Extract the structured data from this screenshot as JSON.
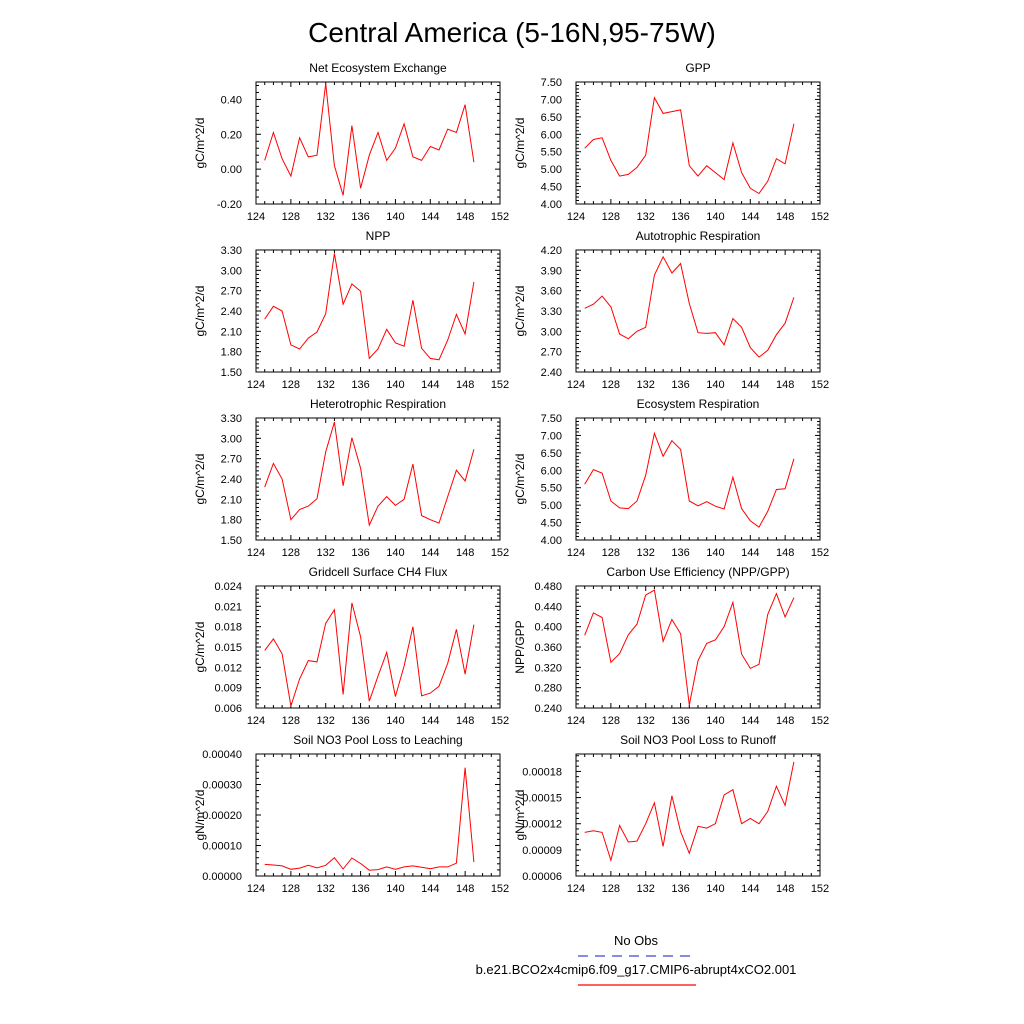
{
  "figure": {
    "title": "Central America (5-16N,95-75W)",
    "line_color": "#ff0000",
    "obs_line_color": "#4444cc"
  },
  "legend": {
    "obs_label": "No Obs",
    "model_label": "b.e21.BCO2x4cmip6.f09_g17.CMIP6-abrupt4xCO2.001"
  },
  "chart_data": [
    {
      "type": "line",
      "title": "Net Ecosystem Exchange",
      "ylabel": "gC/m^2/d",
      "xlim": [
        124,
        152
      ],
      "ylim": [
        -0.2,
        0.5
      ],
      "xticks": [
        "124",
        "128",
        "132",
        "136",
        "140",
        "144",
        "148",
        "152"
      ],
      "yticks": [
        "-0.20",
        "0.00",
        "0.20",
        "0.40"
      ],
      "x": [
        125,
        126,
        127,
        128,
        129,
        130,
        131,
        132,
        133,
        134,
        135,
        136,
        137,
        138,
        139,
        140,
        141,
        142,
        143,
        144,
        145,
        146,
        147,
        148,
        149
      ],
      "series": [
        {
          "name": "b.e21.BCO2x4cmip6.f09_g17.CMIP6-abrupt4xCO2.001",
          "values": [
            0.05,
            0.21,
            0.06,
            -0.04,
            0.18,
            0.07,
            0.08,
            0.49,
            0.02,
            -0.15,
            0.25,
            -0.11,
            0.08,
            0.21,
            0.05,
            0.12,
            0.26,
            0.07,
            0.05,
            0.13,
            0.11,
            0.23,
            0.21,
            0.37,
            0.04
          ]
        }
      ]
    },
    {
      "type": "line",
      "title": "GPP",
      "ylabel": "gC/m^2/d",
      "xlim": [
        124,
        152
      ],
      "ylim": [
        4.0,
        7.5
      ],
      "xticks": [
        "124",
        "128",
        "132",
        "136",
        "140",
        "144",
        "148",
        "152"
      ],
      "yticks": [
        "4.00",
        "4.50",
        "5.00",
        "5.50",
        "6.00",
        "6.50",
        "7.00",
        "7.50"
      ],
      "x": [
        125,
        126,
        127,
        128,
        129,
        130,
        131,
        132,
        133,
        134,
        135,
        136,
        137,
        138,
        139,
        140,
        141,
        142,
        143,
        144,
        145,
        146,
        147,
        148,
        149
      ],
      "series": [
        {
          "name": "b.e21.BCO2x4cmip6.f09_g17.CMIP6-abrupt4xCO2.001",
          "values": [
            5.6,
            5.85,
            5.9,
            5.25,
            4.8,
            4.85,
            5.05,
            5.4,
            7.05,
            6.6,
            6.65,
            6.7,
            5.1,
            4.8,
            5.1,
            4.9,
            4.7,
            5.75,
            4.9,
            4.45,
            4.3,
            4.65,
            5.3,
            5.15,
            6.3
          ]
        }
      ]
    },
    {
      "type": "line",
      "title": "NPP",
      "ylabel": "gC/m^2/d",
      "xlim": [
        124,
        152
      ],
      "ylim": [
        1.5,
        3.3
      ],
      "xticks": [
        "124",
        "128",
        "132",
        "136",
        "140",
        "144",
        "148",
        "152"
      ],
      "yticks": [
        "1.50",
        "1.80",
        "2.10",
        "2.40",
        "2.70",
        "3.00",
        "3.30"
      ],
      "x": [
        125,
        126,
        127,
        128,
        129,
        130,
        131,
        132,
        133,
        134,
        135,
        136,
        137,
        138,
        139,
        140,
        141,
        142,
        143,
        144,
        145,
        146,
        147,
        148,
        149
      ],
      "series": [
        {
          "name": "b.e21.BCO2x4cmip6.f09_g17.CMIP6-abrupt4xCO2.001",
          "values": [
            2.28,
            2.47,
            2.4,
            1.9,
            1.84,
            2.0,
            2.09,
            2.36,
            3.25,
            2.5,
            2.8,
            2.69,
            1.7,
            1.84,
            2.13,
            1.93,
            1.88,
            2.56,
            1.85,
            1.7,
            1.68,
            1.97,
            2.35,
            2.06,
            2.83
          ]
        }
      ]
    },
    {
      "type": "line",
      "title": "Autotrophic Respiration",
      "ylabel": "gC/m^2/d",
      "xlim": [
        124,
        152
      ],
      "ylim": [
        2.4,
        4.2
      ],
      "xticks": [
        "124",
        "128",
        "132",
        "136",
        "140",
        "144",
        "148",
        "152"
      ],
      "yticks": [
        "2.40",
        "2.70",
        "3.00",
        "3.30",
        "3.60",
        "3.90",
        "4.20"
      ],
      "x": [
        125,
        126,
        127,
        128,
        129,
        130,
        131,
        132,
        133,
        134,
        135,
        136,
        137,
        138,
        139,
        140,
        141,
        142,
        143,
        144,
        145,
        146,
        147,
        148,
        149
      ],
      "series": [
        {
          "name": "b.e21.BCO2x4cmip6.f09_g17.CMIP6-abrupt4xCO2.001",
          "values": [
            3.34,
            3.4,
            3.52,
            3.36,
            2.96,
            2.89,
            3.0,
            3.06,
            3.83,
            4.1,
            3.86,
            4.0,
            3.41,
            2.98,
            2.97,
            2.98,
            2.8,
            3.19,
            3.06,
            2.76,
            2.62,
            2.72,
            2.95,
            3.12,
            3.5
          ]
        }
      ]
    },
    {
      "type": "line",
      "title": "Heterotrophic Respiration",
      "ylabel": "gC/m^2/d",
      "xlim": [
        124,
        152
      ],
      "ylim": [
        1.5,
        3.3
      ],
      "xticks": [
        "124",
        "128",
        "132",
        "136",
        "140",
        "144",
        "148",
        "152"
      ],
      "yticks": [
        "1.50",
        "1.80",
        "2.10",
        "2.40",
        "2.70",
        "3.00",
        "3.30"
      ],
      "x": [
        125,
        126,
        127,
        128,
        129,
        130,
        131,
        132,
        133,
        134,
        135,
        136,
        137,
        138,
        139,
        140,
        141,
        142,
        143,
        144,
        145,
        146,
        147,
        148,
        149
      ],
      "series": [
        {
          "name": "b.e21.BCO2x4cmip6.f09_g17.CMIP6-abrupt4xCO2.001",
          "values": [
            2.28,
            2.63,
            2.4,
            1.8,
            1.95,
            2.0,
            2.11,
            2.8,
            3.24,
            2.3,
            3.01,
            2.56,
            1.72,
            2.0,
            2.14,
            2.01,
            2.1,
            2.62,
            1.86,
            1.8,
            1.75,
            2.14,
            2.53,
            2.37,
            2.84
          ]
        }
      ]
    },
    {
      "type": "line",
      "title": "Ecosystem Respiration",
      "ylabel": "gC/m^2/d",
      "xlim": [
        124,
        152
      ],
      "ylim": [
        4.0,
        7.5
      ],
      "xticks": [
        "124",
        "128",
        "132",
        "136",
        "140",
        "144",
        "148",
        "152"
      ],
      "yticks": [
        "4.00",
        "4.50",
        "5.00",
        "5.50",
        "6.00",
        "6.50",
        "7.00",
        "7.50"
      ],
      "x": [
        125,
        126,
        127,
        128,
        129,
        130,
        131,
        132,
        133,
        134,
        135,
        136,
        137,
        138,
        139,
        140,
        141,
        142,
        143,
        144,
        145,
        146,
        147,
        148,
        149
      ],
      "series": [
        {
          "name": "b.e21.BCO2x4cmip6.f09_g17.CMIP6-abrupt4xCO2.001",
          "values": [
            5.6,
            6.02,
            5.92,
            5.12,
            4.92,
            4.9,
            5.12,
            5.86,
            7.06,
            6.4,
            6.85,
            6.6,
            5.12,
            4.98,
            5.1,
            4.97,
            4.89,
            5.8,
            4.9,
            4.55,
            4.37,
            4.82,
            5.45,
            5.47,
            6.33
          ]
        }
      ]
    },
    {
      "type": "line",
      "title": "Gridcell Surface CH4 Flux",
      "ylabel": "gC/m^2/d",
      "xlim": [
        124,
        152
      ],
      "ylim": [
        0.006,
        0.024
      ],
      "xticks": [
        "124",
        "128",
        "132",
        "136",
        "140",
        "144",
        "148",
        "152"
      ],
      "yticks": [
        "0.006",
        "0.009",
        "0.012",
        "0.015",
        "0.018",
        "0.021",
        "0.024"
      ],
      "x": [
        125,
        126,
        127,
        128,
        129,
        130,
        131,
        132,
        133,
        134,
        135,
        136,
        137,
        138,
        139,
        140,
        141,
        142,
        143,
        144,
        145,
        146,
        147,
        148,
        149
      ],
      "series": [
        {
          "name": "b.e21.BCO2x4cmip6.f09_g17.CMIP6-abrupt4xCO2.001",
          "values": [
            0.0145,
            0.0162,
            0.014,
            0.0063,
            0.0103,
            0.013,
            0.0128,
            0.0185,
            0.0205,
            0.008,
            0.0215,
            0.0165,
            0.007,
            0.0107,
            0.0142,
            0.0077,
            0.0122,
            0.018,
            0.0078,
            0.0082,
            0.0092,
            0.0126,
            0.0176,
            0.011,
            0.0183
          ]
        }
      ]
    },
    {
      "type": "line",
      "title": "Carbon Use Efficiency (NPP/GPP)",
      "ylabel": "NPP/GPP",
      "xlim": [
        124,
        152
      ],
      "ylim": [
        0.24,
        0.48
      ],
      "xticks": [
        "124",
        "128",
        "132",
        "136",
        "140",
        "144",
        "148",
        "152"
      ],
      "yticks": [
        "0.240",
        "0.280",
        "0.320",
        "0.360",
        "0.400",
        "0.440",
        "0.480"
      ],
      "x": [
        125,
        126,
        127,
        128,
        129,
        130,
        131,
        132,
        133,
        134,
        135,
        136,
        137,
        138,
        139,
        140,
        141,
        142,
        143,
        144,
        145,
        146,
        147,
        148,
        149
      ],
      "series": [
        {
          "name": "b.e21.BCO2x4cmip6.f09_g17.CMIP6-abrupt4xCO2.001",
          "values": [
            0.383,
            0.427,
            0.418,
            0.33,
            0.347,
            0.384,
            0.405,
            0.462,
            0.472,
            0.371,
            0.414,
            0.386,
            0.246,
            0.333,
            0.367,
            0.374,
            0.4,
            0.448,
            0.346,
            0.318,
            0.326,
            0.424,
            0.465,
            0.419,
            0.457
          ]
        }
      ]
    },
    {
      "type": "line",
      "title": "Soil NO3 Pool Loss to Leaching",
      "ylabel": "gN/m^2/d",
      "xlim": [
        124,
        152
      ],
      "ylim": [
        0.0,
        0.0004
      ],
      "xticks": [
        "124",
        "128",
        "132",
        "136",
        "140",
        "144",
        "148",
        "152"
      ],
      "yticks": [
        "0.00000",
        "0.00010",
        "0.00020",
        "0.00030",
        "0.00040"
      ],
      "x": [
        125,
        126,
        127,
        128,
        129,
        130,
        131,
        132,
        133,
        134,
        135,
        136,
        137,
        138,
        139,
        140,
        141,
        142,
        143,
        144,
        145,
        146,
        147,
        148,
        149
      ],
      "series": [
        {
          "name": "b.e21.BCO2x4cmip6.f09_g17.CMIP6-abrupt4xCO2.001",
          "values": [
            3.8e-05,
            3.6e-05,
            3.3e-05,
            2.2e-05,
            2.6e-05,
            3.5e-05,
            2.7e-05,
            3.5e-05,
            6e-05,
            2.3e-05,
            5.9e-05,
            4.1e-05,
            1.9e-05,
            2.1e-05,
            3e-05,
            2.2e-05,
            3e-05,
            3.3e-05,
            2.9e-05,
            2.4e-05,
            3e-05,
            3e-05,
            4.2e-05,
            0.000355,
            4.6e-05
          ]
        }
      ]
    },
    {
      "type": "line",
      "title": "Soil NO3 Pool Loss to Runoff",
      "ylabel": "gN/m^2/d",
      "xlim": [
        124,
        152
      ],
      "ylim": [
        6e-05,
        0.0002
      ],
      "xticks": [
        "124",
        "128",
        "132",
        "136",
        "140",
        "144",
        "148",
        "152"
      ],
      "yticks": [
        "0.00006",
        "0.00009",
        "0.00012",
        "0.00015",
        "0.00018"
      ],
      "x": [
        125,
        126,
        127,
        128,
        129,
        130,
        131,
        132,
        133,
        134,
        135,
        136,
        137,
        138,
        139,
        140,
        141,
        142,
        143,
        144,
        145,
        146,
        147,
        148,
        149
      ],
      "series": [
        {
          "name": "b.e21.BCO2x4cmip6.f09_g17.CMIP6-abrupt4xCO2.001",
          "values": [
            0.00011,
            0.000112,
            0.00011,
            7.8e-05,
            0.000118,
            9.9e-05,
            0.0001,
            0.00012,
            0.000144,
            9.4e-05,
            0.000152,
            0.000111,
            8.6e-05,
            0.000117,
            0.000115,
            0.00012,
            0.000153,
            0.000159,
            0.00012,
            0.000126,
            0.00012,
            0.000134,
            0.000163,
            0.000141,
            0.000191
          ]
        }
      ]
    }
  ]
}
